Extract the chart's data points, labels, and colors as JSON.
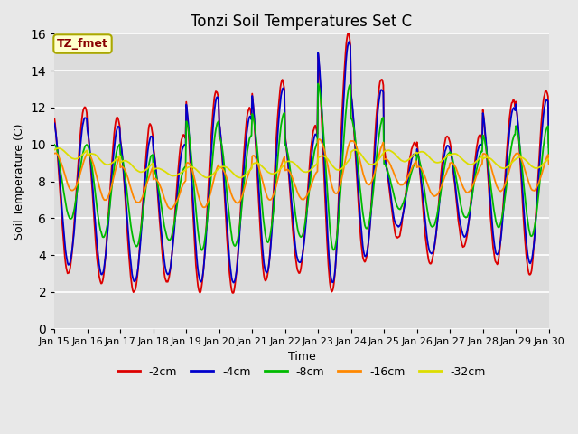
{
  "title": "Tonzi Soil Temperatures Set C",
  "xlabel": "Time",
  "ylabel": "Soil Temperature (C)",
  "annotation": "TZ_fmet",
  "ylim": [
    0,
    16
  ],
  "xlim": [
    0,
    360
  ],
  "xtick_labels": [
    "Jan 15",
    "Jan 16",
    "Jan 17",
    "Jan 18",
    "Jan 19",
    "Jan 20",
    "Jan 21",
    "Jan 22",
    "Jan 23",
    "Jan 24",
    "Jan 25",
    "Jan 26",
    "Jan 27",
    "Jan 28",
    "Jan 29",
    "Jan 30"
  ],
  "xtick_positions": [
    0,
    24,
    48,
    72,
    96,
    120,
    144,
    168,
    192,
    216,
    240,
    264,
    288,
    312,
    336,
    360
  ],
  "colors": {
    "-2cm": "#dd0000",
    "-4cm": "#0000cc",
    "-8cm": "#00bb00",
    "-16cm": "#ff8800",
    "-32cm": "#dddd00"
  },
  "legend_labels": [
    "-2cm",
    "-4cm",
    "-8cm",
    "-16cm",
    "-32cm"
  ],
  "fig_bg": "#e8e8e8",
  "plot_bg": "#dcdcdc",
  "grid_color": "#ffffff",
  "annotation_bg": "#ffffcc",
  "annotation_text_color": "#880000",
  "annotation_edge_color": "#aaa800",
  "title_fontsize": 12,
  "label_fontsize": 9,
  "tick_fontsize": 8,
  "linewidth": 1.3
}
